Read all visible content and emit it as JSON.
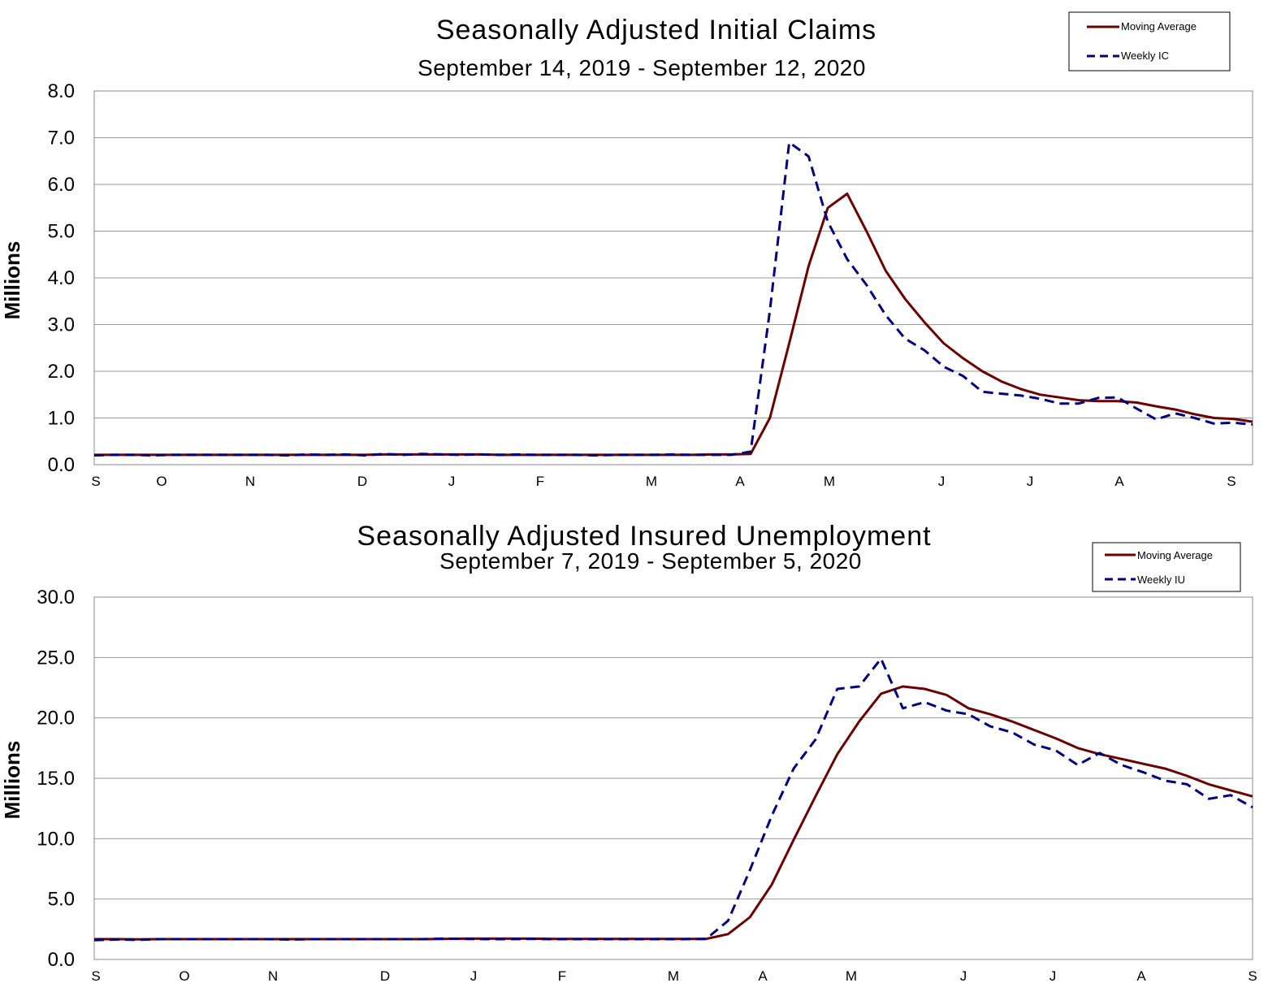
{
  "colors": {
    "moving_average": "#6b0000",
    "weekly": "#00007f",
    "grid": "#999999"
  },
  "chart_data": [
    {
      "type": "line",
      "title": "Seasonally Adjusted Initial Claims",
      "subtitle": "September 14, 2019 - September 12, 2020",
      "ylabel": "Millions",
      "ylim": [
        0,
        8
      ],
      "yticks": [
        "0.0",
        "1.0",
        "2.0",
        "3.0",
        "4.0",
        "5.0",
        "6.0",
        "7.0",
        "8.0"
      ],
      "xticks": [
        "S",
        "O",
        "N",
        "D",
        "J",
        "F",
        "M",
        "A",
        "M",
        "J",
        "J",
        "A",
        "S"
      ],
      "grid": true,
      "legend_position": "top-right",
      "legend": [
        "Moving Average",
        "Weekly IC"
      ],
      "series": [
        {
          "name": "Moving Average",
          "style": "solid",
          "values": [
            0.21,
            0.21,
            0.21,
            0.21,
            0.21,
            0.21,
            0.21,
            0.21,
            0.21,
            0.21,
            0.21,
            0.21,
            0.21,
            0.21,
            0.21,
            0.22,
            0.22,
            0.22,
            0.22,
            0.22,
            0.22,
            0.21,
            0.21,
            0.21,
            0.21,
            0.21,
            0.21,
            0.21,
            0.21,
            0.21,
            0.21,
            0.21,
            0.22,
            0.22,
            0.23,
            1.0,
            2.6,
            4.25,
            5.5,
            5.8,
            5.0,
            4.15,
            3.55,
            3.05,
            2.6,
            2.28,
            2.0,
            1.78,
            1.62,
            1.5,
            1.44,
            1.38,
            1.36,
            1.36,
            1.33,
            1.25,
            1.18,
            1.08,
            1.0,
            0.98,
            0.92
          ]
        },
        {
          "name": "Weekly IC",
          "style": "dashed",
          "values": [
            0.2,
            0.21,
            0.21,
            0.2,
            0.21,
            0.21,
            0.21,
            0.21,
            0.21,
            0.21,
            0.2,
            0.22,
            0.21,
            0.22,
            0.2,
            0.23,
            0.21,
            0.23,
            0.22,
            0.21,
            0.22,
            0.21,
            0.22,
            0.21,
            0.21,
            0.21,
            0.2,
            0.21,
            0.21,
            0.21,
            0.22,
            0.21,
            0.21,
            0.21,
            0.28,
            3.3,
            6.9,
            6.6,
            5.2,
            4.4,
            3.85,
            3.2,
            2.7,
            2.45,
            2.1,
            1.9,
            1.56,
            1.52,
            1.48,
            1.41,
            1.31,
            1.31,
            1.43,
            1.44,
            1.2,
            0.97,
            1.1,
            1.0,
            0.88,
            0.9,
            0.86
          ]
        }
      ]
    },
    {
      "type": "line",
      "title": "Seasonally Adjusted Insured Unemployment",
      "subtitle": "September 7, 2019 - September 5, 2020",
      "ylabel": "Millions",
      "ylim": [
        0,
        30
      ],
      "yticks": [
        "0.0",
        "5.0",
        "10.0",
        "15.0",
        "20.0",
        "25.0",
        "30.0"
      ],
      "xticks": [
        "S",
        "O",
        "N",
        "D",
        "J",
        "F",
        "M",
        "A",
        "M",
        "J",
        "J",
        "A",
        "S"
      ],
      "grid": true,
      "legend_position": "top-right",
      "legend": [
        "Moving Average",
        "Weekly IU"
      ],
      "series": [
        {
          "name": "Moving Average",
          "style": "solid",
          "values": [
            1.68,
            1.68,
            1.66,
            1.68,
            1.68,
            1.68,
            1.68,
            1.68,
            1.68,
            1.68,
            1.68,
            1.68,
            1.68,
            1.68,
            1.68,
            1.68,
            1.7,
            1.72,
            1.72,
            1.72,
            1.72,
            1.7,
            1.7,
            1.7,
            1.7,
            1.7,
            1.7,
            1.7,
            1.7,
            2.1,
            3.5,
            6.2,
            9.9,
            13.5,
            17.0,
            19.7,
            22.0,
            22.6,
            22.4,
            21.9,
            20.8,
            20.3,
            19.7,
            19.0,
            18.3,
            17.5,
            17.0,
            16.6,
            16.2,
            15.8,
            15.2,
            14.5,
            14.0,
            13.5
          ]
        },
        {
          "name": "Weekly IU",
          "style": "dashed",
          "values": [
            1.6,
            1.65,
            1.62,
            1.68,
            1.68,
            1.68,
            1.68,
            1.68,
            1.68,
            1.65,
            1.68,
            1.68,
            1.68,
            1.68,
            1.68,
            1.68,
            1.72,
            1.7,
            1.68,
            1.68,
            1.7,
            1.68,
            1.68,
            1.68,
            1.68,
            1.68,
            1.68,
            1.68,
            1.7,
            3.2,
            7.4,
            11.9,
            15.8,
            18.2,
            22.4,
            22.6,
            24.9,
            20.8,
            21.3,
            20.6,
            20.3,
            19.3,
            18.8,
            17.8,
            17.3,
            16.1,
            17.1,
            16.1,
            15.5,
            14.8,
            14.5,
            13.3,
            13.6,
            12.6
          ]
        }
      ]
    }
  ]
}
